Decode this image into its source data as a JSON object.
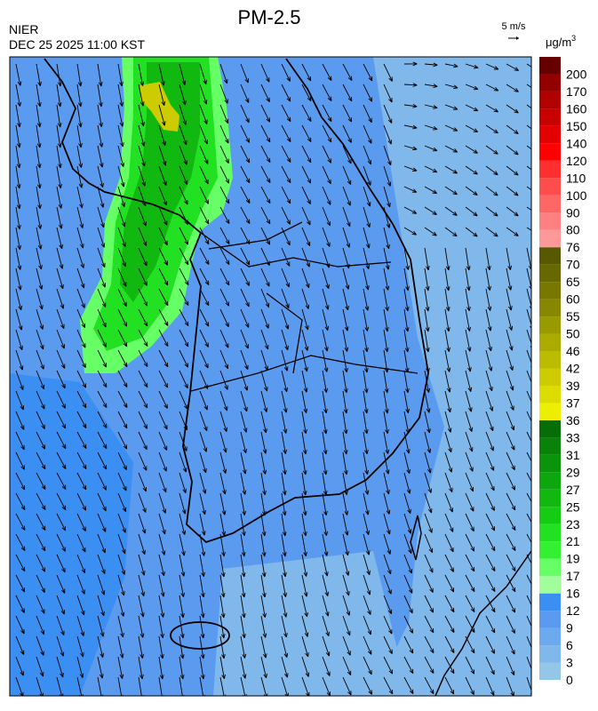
{
  "title": "PM-2.5",
  "source": "NIER",
  "timestamp": "DEC 25 2025 11:00 KST",
  "wind_reference": "5 m/s",
  "unit": {
    "base": "μg/m",
    "sup": "3"
  },
  "colorbar": {
    "ticks": [
      0,
      3,
      6,
      9,
      12,
      16,
      17,
      19,
      21,
      23,
      25,
      27,
      29,
      31,
      33,
      36,
      37,
      39,
      42,
      46,
      50,
      55,
      60,
      65,
      70,
      76,
      80,
      90,
      100,
      110,
      120,
      140,
      150,
      160,
      170,
      200
    ],
    "colors": [
      "#94c6e8",
      "#80b8ec",
      "#6ca9ee",
      "#5a9bef",
      "#3b8ff2",
      "#a0ff9a",
      "#66ff66",
      "#33f033",
      "#22e022",
      "#14cc14",
      "#10b810",
      "#0ea60e",
      "#0b940b",
      "#098209",
      "#066e06",
      "#eeee00",
      "#dcdc00",
      "#cccc00",
      "#bbbb00",
      "#aaaa00",
      "#999900",
      "#888800",
      "#787800",
      "#686800",
      "#585800",
      "#ff9999",
      "#ff8080",
      "#ff6666",
      "#ff4d4d",
      "#ff2f2f",
      "#ff0000",
      "#e30000",
      "#c80000",
      "#b00000",
      "#930000",
      "#660000"
    ]
  }
}
